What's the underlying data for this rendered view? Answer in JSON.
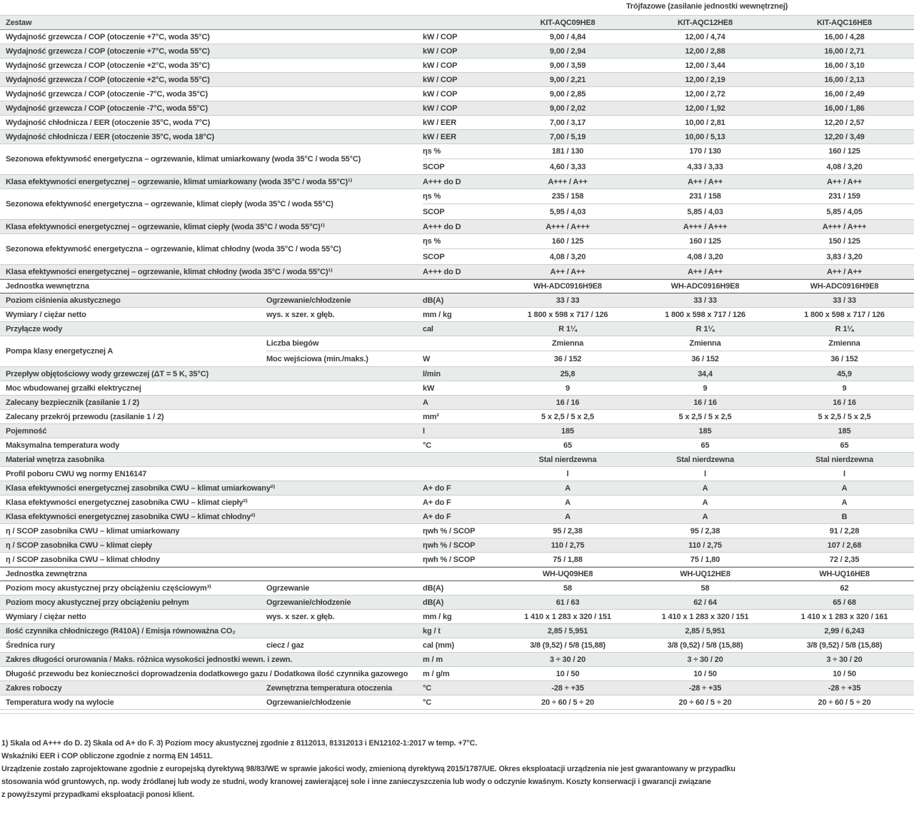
{
  "title": "Trójfazowe (zasilanie jednostki wewnętrznej)",
  "header": {
    "label": "Zestaw",
    "models": [
      "KIT-AQC09HE8",
      "KIT-AQC12HE8",
      "KIT-AQC16HE8"
    ]
  },
  "rows": [
    {
      "t": "d",
      "g": false,
      "label": "Wydajność grzewcza / COP (otoczenie +7°C, woda 35°C)",
      "sub": "",
      "unit": "kW / COP",
      "v": [
        "9,00 / 4,84",
        "12,00 / 4,74",
        "16,00 / 4,28"
      ]
    },
    {
      "t": "d",
      "g": true,
      "label": "Wydajność grzewcza / COP (otoczenie +7°C, woda 55°C)",
      "sub": "",
      "unit": "kW / COP",
      "v": [
        "9,00 / 2,94",
        "12,00 / 2,88",
        "16,00 / 2,71"
      ]
    },
    {
      "t": "d",
      "g": false,
      "label": "Wydajność grzewcza / COP (otoczenie +2°C, woda 35°C)",
      "sub": "",
      "unit": "kW / COP",
      "v": [
        "9,00 / 3,59",
        "12,00 / 3,44",
        "16,00 / 3,10"
      ]
    },
    {
      "t": "d",
      "g": true,
      "label": "Wydajność grzewcza / COP (otoczenie +2°C, woda 55°C)",
      "sub": "",
      "unit": "kW / COP",
      "v": [
        "9,00 / 2,21",
        "12,00 / 2,19",
        "16,00 / 2,13"
      ]
    },
    {
      "t": "d",
      "g": false,
      "label": "Wydajność grzewcza / COP (otoczenie -7°C, woda 35°C)",
      "sub": "",
      "unit": "kW / COP",
      "v": [
        "9,00 / 2,85",
        "12,00 / 2,72",
        "16,00 / 2,49"
      ]
    },
    {
      "t": "d",
      "g": true,
      "label": "Wydajność grzewcza / COP (otoczenie -7°C, woda 55°C)",
      "sub": "",
      "unit": "kW / COP",
      "v": [
        "9,00 / 2,02",
        "12,00 / 1,92",
        "16,00 / 1,86"
      ]
    },
    {
      "t": "d",
      "g": false,
      "label": "Wydajność chłodnicza / EER (otoczenie 35°C, woda 7°C)",
      "sub": "",
      "unit": "kW / EER",
      "v": [
        "7,00 / 3,17",
        "10,00 / 2,81",
        "12,20 / 2,57"
      ]
    },
    {
      "t": "d",
      "g": true,
      "label": "Wydajność chłodnicza / EER (otoczenie 35°C, woda 18°C)",
      "sub": "",
      "unit": "kW / EER",
      "v": [
        "7,00 / 5,19",
        "10,00 / 5,13",
        "12,20 / 3,49"
      ]
    },
    {
      "t": "g2",
      "g": false,
      "span": "wide",
      "label": "Sezonowa efektywność energetyczna – ogrzewanie, klimat umiarkowany (woda 35°C / woda 55°C)",
      "subs": [
        {
          "sub": "",
          "unit": "ηs %",
          "v": [
            "181 / 130",
            "170 / 130",
            "160 / 125"
          ]
        },
        {
          "sub": "",
          "unit": "SCOP",
          "v": [
            "4,60 / 3,33",
            "4,33 / 3,33",
            "4,08 / 3,20"
          ]
        }
      ]
    },
    {
      "t": "d",
      "g": true,
      "label": "Klasa efektywności energetycznej – ogrzewanie, klimat umiarkowany (woda 35°C / woda 55°C)¹⁾",
      "sub": "",
      "unit": "A+++ do D",
      "v": [
        "A+++ / A++",
        "A++ / A++",
        "A++ / A++"
      ]
    },
    {
      "t": "g2",
      "g": false,
      "span": "wide",
      "label": "Sezonowa efektywność energetyczna – ogrzewanie, klimat ciepły (woda 35°C / woda 55°C)",
      "subs": [
        {
          "sub": "",
          "unit": "ηs %",
          "v": [
            "235 / 158",
            "231 / 158",
            "231 / 159"
          ]
        },
        {
          "sub": "",
          "unit": "SCOP",
          "v": [
            "5,95 / 4,03",
            "5,85 / 4,03",
            "5,85 / 4,05"
          ]
        }
      ]
    },
    {
      "t": "d",
      "g": true,
      "label": "Klasa efektywności energetycznej – ogrzewanie, klimat ciepły (woda 35°C / woda 55°C)¹⁾",
      "sub": "",
      "unit": "A+++ do D",
      "v": [
        "A+++ / A+++",
        "A+++ / A+++",
        "A+++ / A+++"
      ]
    },
    {
      "t": "g2",
      "g": false,
      "span": "wide",
      "label": "Sezonowa efektywność energetyczna – ogrzewanie, klimat chłodny (woda 35°C / woda 55°C)",
      "subs": [
        {
          "sub": "",
          "unit": "ηs %",
          "v": [
            "160 / 125",
            "160 / 125",
            "150 / 125"
          ]
        },
        {
          "sub": "",
          "unit": "SCOP",
          "v": [
            "4,08 / 3,20",
            "4,08 / 3,20",
            "3,83 / 3,20"
          ]
        }
      ]
    },
    {
      "t": "d",
      "g": true,
      "label": "Klasa efektywności energetycznej – ogrzewanie, klimat chłodny (woda 35°C / woda 55°C)¹⁾",
      "sub": "",
      "unit": "A+++ do D",
      "v": [
        "A++ / A++",
        "A++ / A++",
        "A++ / A++"
      ]
    },
    {
      "t": "s",
      "label": "Jednostka wewnętrzna",
      "v": [
        "WH-ADC0916H9E8",
        "WH-ADC0916H9E8",
        "WH-ADC0916H9E8"
      ]
    },
    {
      "t": "d",
      "g": true,
      "label": "Poziom ciśnienia akustycznego",
      "sub": "Ogrzewanie/chłodzenie",
      "unit": "dB(A)",
      "v": [
        "33 / 33",
        "33 / 33",
        "33 / 33"
      ]
    },
    {
      "t": "d",
      "g": false,
      "label": "Wymiary / ciężar netto",
      "sub": "wys. x szer. x głęb.",
      "unit": "mm / kg",
      "v": [
        "1 800 x 598 x 717 / 126",
        "1 800 x 598 x 717 / 126",
        "1 800 x 598 x 717 / 126"
      ]
    },
    {
      "t": "d",
      "g": true,
      "label": "Przyłącze wody",
      "sub": "",
      "unit": "cal",
      "v": [
        "R 1¼",
        "R 1¼",
        "R 1¼"
      ]
    },
    {
      "t": "g2",
      "g": false,
      "span": "narrow",
      "label": "Pompa klasy energetycznej A",
      "subs": [
        {
          "sub": "Liczba biegów",
          "unit": "",
          "v": [
            "Zmienna",
            "Zmienna",
            "Zmienna"
          ]
        },
        {
          "sub": "Moc wejściowa (min./maks.)",
          "unit": "W",
          "v": [
            "36 / 152",
            "36 / 152",
            "36 / 152"
          ]
        }
      ]
    },
    {
      "t": "d",
      "g": true,
      "label": "Przepływ objętościowy wody grzewczej (ΔT = 5 K, 35°C)",
      "sub": "",
      "unit": "l/min",
      "v": [
        "25,8",
        "34,4",
        "45,9"
      ]
    },
    {
      "t": "d",
      "g": false,
      "label": "Moc wbudowanej grzałki elektrycznej",
      "sub": "",
      "unit": "kW",
      "v": [
        "9",
        "9",
        "9"
      ]
    },
    {
      "t": "d",
      "g": true,
      "label": "Zalecany bezpiecznik (zasilanie 1 / 2)",
      "sub": "",
      "unit": "A",
      "v": [
        "16 / 16",
        "16 / 16",
        "16 / 16"
      ]
    },
    {
      "t": "d",
      "g": false,
      "label": "Zalecany przekrój przewodu (zasilanie 1 / 2)",
      "sub": "",
      "unit": "mm²",
      "v": [
        "5 x 2,5 / 5 x 2,5",
        "5 x 2,5 / 5 x 2,5",
        "5 x 2,5 / 5 x 2,5"
      ]
    },
    {
      "t": "d",
      "g": true,
      "label": "Pojemność",
      "sub": "",
      "unit": "l",
      "v": [
        "185",
        "185",
        "185"
      ]
    },
    {
      "t": "d",
      "g": false,
      "label": "Maksymalna temperatura wody",
      "sub": "",
      "unit": "°C",
      "v": [
        "65",
        "65",
        "65"
      ]
    },
    {
      "t": "d",
      "g": true,
      "label": "Materiał wnętrza zasobnika",
      "sub": "",
      "unit": "",
      "v": [
        "Stal nierdzewna",
        "Stal nierdzewna",
        "Stal nierdzewna"
      ]
    },
    {
      "t": "d",
      "g": false,
      "label": "Profil poboru CWU wg normy EN16147",
      "sub": "",
      "unit": "",
      "v": [
        "l",
        "l",
        "l"
      ]
    },
    {
      "t": "d",
      "g": true,
      "label": "Klasa efektywności energetycznej zasobnika CWU – klimat umiarkowany²⁾",
      "sub": "",
      "unit": "A+ do F",
      "v": [
        "A",
        "A",
        "A"
      ]
    },
    {
      "t": "d",
      "g": false,
      "label": "Klasa efektywności energetycznej zasobnika CWU – klimat ciepły²⁾",
      "sub": "",
      "unit": "A+ do F",
      "v": [
        "A",
        "A",
        "A"
      ]
    },
    {
      "t": "d",
      "g": true,
      "label": "Klasa efektywności energetycznej zasobnika CWU – klimat chłodny²⁾",
      "sub": "",
      "unit": "A+ do F",
      "v": [
        "A",
        "A",
        "B"
      ]
    },
    {
      "t": "d",
      "g": false,
      "label": "η / SCOP zasobnika CWU – klimat umiarkowany",
      "sub": "",
      "unit": "ηwh % / SCOP",
      "v": [
        "95 / 2,38",
        "95 / 2,38",
        "91 / 2,28"
      ]
    },
    {
      "t": "d",
      "g": true,
      "label": "η / SCOP zasobnika CWU – klimat ciepły",
      "sub": "",
      "unit": "ηwh % / SCOP",
      "v": [
        "110 / 2,75",
        "110 / 2,75",
        "107 / 2,68"
      ]
    },
    {
      "t": "d",
      "g": false,
      "label": "η / SCOP zasobnika CWU – klimat chłodny",
      "sub": "",
      "unit": "ηwh % / SCOP",
      "v": [
        "75 / 1,88",
        "75 / 1,80",
        "72 / 2,35"
      ]
    },
    {
      "t": "s",
      "label": "Jednostka zewnętrzna",
      "v": [
        "WH-UQ09HE8",
        "WH-UQ12HE8",
        "WH-UQ16HE8"
      ]
    },
    {
      "t": "d",
      "g": false,
      "label": "Poziom mocy akustycznej przy obciążeniu częściowym³⁾",
      "sub": "Ogrzewanie",
      "unit": "dB(A)",
      "v": [
        "58",
        "58",
        "62"
      ]
    },
    {
      "t": "d",
      "g": true,
      "label": "Poziom mocy akustycznej przy obciążeniu pełnym",
      "sub": "Ogrzewanie/chłodzenie",
      "unit": "dB(A)",
      "v": [
        "61 / 63",
        "62 / 64",
        "65 / 68"
      ]
    },
    {
      "t": "d",
      "g": false,
      "label": "Wymiary / ciężar netto",
      "sub": "wys. x szer. x głęb.",
      "unit": "mm / kg",
      "v": [
        "1 410 x 1 283 x 320 / 151",
        "1 410 x 1 283 x 320 / 151",
        "1 410 x 1 283 x 320 / 161"
      ]
    },
    {
      "t": "d",
      "g": true,
      "label": "Ilość czynnika chłodniczego (R410A) / Emisja równoważna CO₂",
      "sub": "",
      "unit": "kg / t",
      "v": [
        "2,85 / 5,951",
        "2,85 / 5,951",
        "2,99 / 6,243"
      ]
    },
    {
      "t": "d",
      "g": false,
      "label": "Średnica rury",
      "sub": "ciecz / gaz",
      "unit": "cal (mm)",
      "v": [
        "3/8 (9,52) / 5/8 (15,88)",
        "3/8 (9,52) / 5/8 (15,88)",
        "3/8 (9,52) / 5/8 (15,88)"
      ]
    },
    {
      "t": "d",
      "g": true,
      "label": "Zakres długości orurowania / Maks. różnica wysokości jednostki wewn. i zewn.",
      "sub": "",
      "unit": "m / m",
      "v": [
        "3 ÷ 30 / 20",
        "3 ÷ 30 / 20",
        "3 ÷ 30 / 20"
      ]
    },
    {
      "t": "d",
      "g": false,
      "label": "Długość przewodu bez konieczności doprowadzenia dodatkowego gazu / Dodatkowa ilość czynnika gazowego",
      "sub": "",
      "unit": "m / g/m",
      "v": [
        "10 / 50",
        "10 / 50",
        "10 / 50"
      ]
    },
    {
      "t": "d",
      "g": true,
      "label": "Zakres roboczy",
      "sub": "Zewnętrzna temperatura otoczenia",
      "unit": "°C",
      "v": [
        "-28 ÷ +35",
        "-28 ÷ +35",
        "-28 ÷ +35"
      ]
    },
    {
      "t": "d",
      "g": false,
      "label": "Temperatura wody na wylocie",
      "sub": "Ogrzewanie/chłodzenie",
      "unit": "°C",
      "v": [
        "20 ÷ 60 / 5 ÷ 20",
        "20 ÷ 60 / 5 ÷ 20",
        "20 ÷ 60 / 5 ÷ 20"
      ]
    }
  ],
  "footnotes": [
    "1) Skala od A+++ do D. 2) Skala od A+ do F. 3) Poziom mocy akustycznej zgodnie z 8112013, 81312013 i EN12102-1:2017 w temp. +7°C.",
    "Wskaźniki EER i COP obliczone zgodnie z normą EN 14511.",
    "Urządzenie zostało zaprojektowane zgodnie z europejską dyrektywą 98/83/WE w sprawie jakości wody, zmienioną dyrektywą 2015/1787/UE. Okres eksploatacji urządzenia nie jest gwarantowany w przypadku",
    "stosowania wód gruntowych, np. wody źródlanej lub wody ze studni, wody kranowej zawierającej sole i inne zanieczyszczenia lub wody o odczynie kwaśnym. Koszty konserwacji i gwarancji związane",
    "z powyższymi przypadkami eksploatacji ponosi klient."
  ]
}
